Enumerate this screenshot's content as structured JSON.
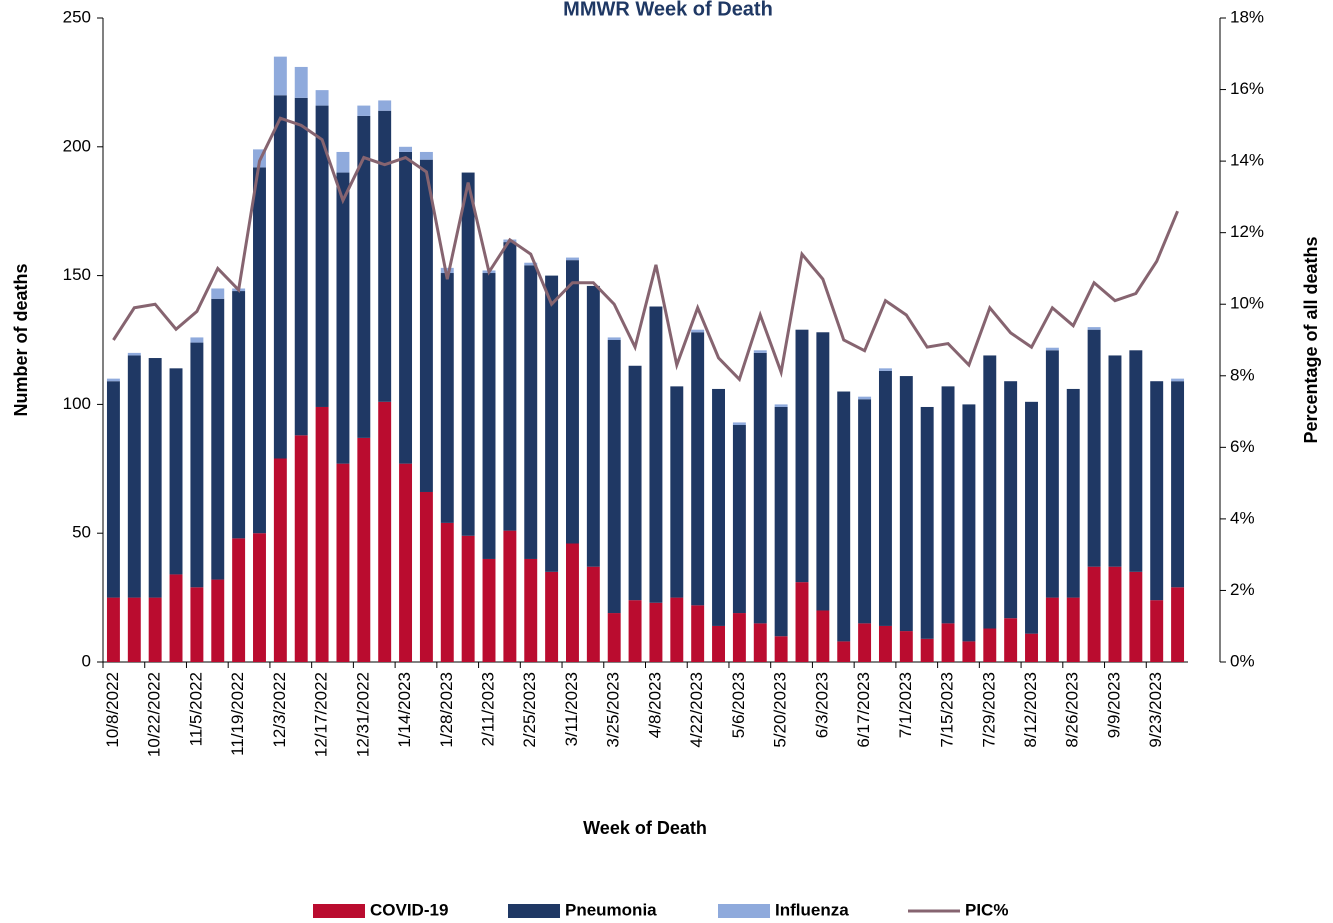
{
  "chart_data": {
    "type": "bar",
    "stacked": true,
    "title": "MMWR Week of Death",
    "x_label": "Week of Death",
    "y_label": "Number of deaths",
    "y2_label": "Percentage of all deaths",
    "categories": [
      "10/8/2022",
      null,
      "10/22/2022",
      null,
      "11/5/2022",
      null,
      "11/19/2022",
      null,
      "12/3/2022",
      null,
      "12/17/2022",
      null,
      "12/31/2022",
      null,
      "1/14/2023",
      null,
      "1/28/2023",
      null,
      "2/11/2023",
      null,
      "2/25/2023",
      null,
      "3/11/2023",
      null,
      "3/25/2023",
      null,
      "4/8/2023",
      null,
      "4/22/2023",
      null,
      "5/6/2023",
      null,
      "5/20/2023",
      null,
      "6/3/2023",
      null,
      "6/17/2023",
      null,
      "7/1/2023",
      null,
      "7/15/2023",
      null,
      "7/29/2023",
      null,
      "8/12/2023",
      null,
      "8/26/2023",
      null,
      "9/9/2023",
      null,
      "9/23/2023",
      null
    ],
    "series": [
      {
        "name": "COVID-19",
        "type": "bar",
        "color": "#ba0c2f",
        "values": [
          25,
          25,
          25,
          34,
          29,
          32,
          48,
          50,
          79,
          88,
          99,
          77,
          87,
          101,
          77,
          66,
          54,
          49,
          40,
          51,
          40,
          35,
          46,
          37,
          19,
          24,
          23,
          25,
          22,
          14,
          19,
          15,
          10,
          31,
          20,
          8,
          15,
          14,
          12,
          9,
          15,
          8,
          13,
          17,
          11,
          25,
          25,
          37,
          37,
          35,
          24,
          29
        ]
      },
      {
        "name": "Pneumonia",
        "type": "bar",
        "color": "#1f3864",
        "values": [
          84,
          94,
          93,
          80,
          95,
          109,
          96,
          142,
          141,
          131,
          117,
          113,
          125,
          113,
          121,
          129,
          97,
          141,
          111,
          112,
          114,
          115,
          110,
          109,
          106,
          91,
          115,
          82,
          106,
          92,
          73,
          105,
          89,
          98,
          108,
          97,
          87,
          99,
          99,
          90,
          92,
          92,
          106,
          92,
          90,
          96,
          81,
          92,
          82,
          86,
          85,
          80
        ]
      },
      {
        "name": "Influenza",
        "type": "bar",
        "color": "#8faadc",
        "values": [
          1,
          1,
          0,
          0,
          2,
          4,
          1,
          7,
          15,
          12,
          6,
          8,
          4,
          4,
          2,
          3,
          2,
          0,
          1,
          1,
          1,
          0,
          1,
          0,
          1,
          0,
          0,
          0,
          1,
          0,
          1,
          1,
          1,
          0,
          0,
          0,
          1,
          1,
          0,
          0,
          0,
          0,
          0,
          0,
          0,
          1,
          0,
          1,
          0,
          0,
          0,
          1
        ]
      },
      {
        "name": "PIC%",
        "type": "line",
        "axis": "y2",
        "color": "#866470",
        "values": [
          9.0,
          9.9,
          10.0,
          9.3,
          9.8,
          11.0,
          10.4,
          14.0,
          15.2,
          15.0,
          14.6,
          12.9,
          14.1,
          13.9,
          14.1,
          13.7,
          10.7,
          13.4,
          10.9,
          11.8,
          11.4,
          10.0,
          10.6,
          10.6,
          10.0,
          8.8,
          11.1,
          8.3,
          9.9,
          8.5,
          7.9,
          9.7,
          8.1,
          11.4,
          10.7,
          9.0,
          8.7,
          10.1,
          9.7,
          8.8,
          8.9,
          8.3,
          9.9,
          9.2,
          8.8,
          9.9,
          9.4,
          10.6,
          10.1,
          10.3,
          11.2,
          12.6
        ]
      }
    ],
    "ylim": [
      0,
      250
    ],
    "yticks": [
      0,
      50,
      100,
      150,
      200,
      250
    ],
    "y2lim": [
      0,
      18
    ],
    "y2ticks": [
      {
        "value": 0,
        "label": "0%"
      },
      {
        "value": 2,
        "label": "2%"
      },
      {
        "value": 4,
        "label": "4%"
      },
      {
        "value": 6,
        "label": "6%"
      },
      {
        "value": 8,
        "label": "8%"
      },
      {
        "value": 10,
        "label": "10%"
      },
      {
        "value": 12,
        "label": "12%"
      },
      {
        "value": 14,
        "label": "14%"
      },
      {
        "value": 16,
        "label": "16%"
      },
      {
        "value": 18,
        "label": "18%"
      }
    ],
    "grid": false,
    "legend": "bottom"
  }
}
